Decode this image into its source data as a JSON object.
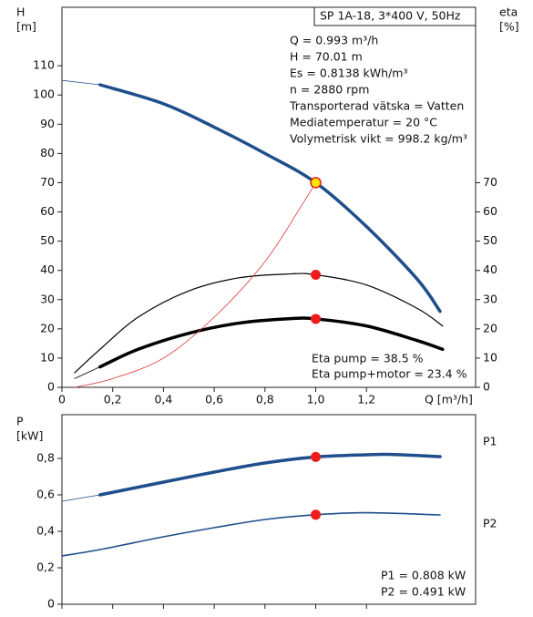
{
  "chart_data": [
    {
      "type": "line",
      "y_label": [
        "H",
        "[m]"
      ],
      "y2_label": [
        "eta",
        "[%]"
      ],
      "x_label": "Q [m³/h]",
      "box_title": "SP 1A-18, 3*400 V, 50Hz",
      "info": [
        "Q = 0.993 m³/h",
        "H = 70.01 m",
        "Es = 0.8138 kWh/m³",
        "n = 2880 rpm",
        "Transporterad vätska = Vatten",
        "Mediatemperatur = 20 °C",
        "Volymetrisk vikt = 998.2 kg/m³"
      ],
      "annotations": [
        "Eta pump = 38.5 %",
        "Eta pump+motor = 23.4 %"
      ],
      "xlim": [
        0,
        1.63
      ],
      "xticks": [
        0,
        {
          "value": 0.2,
          "label": "0,2"
        },
        {
          "value": 0.4,
          "label": "0,4"
        },
        {
          "value": 0.6,
          "label": "0,6"
        },
        {
          "value": 0.8,
          "label": "0,8"
        },
        {
          "value": 1.0,
          "label": "1,0"
        },
        {
          "value": 1.2,
          "label": "1,2"
        }
      ],
      "ylim": [
        0,
        130
      ],
      "yticks": [
        0,
        10,
        20,
        30,
        40,
        50,
        60,
        70,
        80,
        90,
        100,
        110
      ],
      "y2lim": [
        0,
        130
      ],
      "y2ticks": [
        0,
        10,
        20,
        30,
        40,
        50,
        60,
        70
      ],
      "series": [
        {
          "color": "#1f4e8c",
          "width": 0.8,
          "x": [
            0,
            0.15
          ],
          "values": [
            105,
            103.5
          ]
        },
        {
          "color": "#1f4e8c",
          "width": 3.5,
          "x": [
            0.15,
            0.4,
            0.6,
            0.8,
            1.0,
            1.2,
            1.4,
            1.49
          ],
          "values": [
            103.5,
            97,
            89,
            80,
            70,
            55,
            37,
            26
          ]
        },
        {
          "color": "#000000",
          "width": 1.2,
          "axis": "y2",
          "x": [
            0.05,
            0.15,
            0.3,
            0.5,
            0.7,
            0.9,
            1.0,
            1.2,
            1.4,
            1.5
          ],
          "values": [
            5,
            13,
            24,
            33,
            37.5,
            38.8,
            38.5,
            35,
            27,
            21
          ]
        },
        {
          "color": "#000000",
          "width": 0.8,
          "axis": "y2",
          "x": [
            0.05,
            0.15
          ],
          "values": [
            3,
            7
          ]
        },
        {
          "color": "#000000",
          "width": 3.5,
          "axis": "y2",
          "x": [
            0.15,
            0.3,
            0.5,
            0.7,
            0.9,
            1.0,
            1.2,
            1.4,
            1.5
          ],
          "values": [
            7,
            13,
            18.5,
            22,
            23.5,
            23.4,
            21,
            16,
            13
          ]
        },
        {
          "color": "#e03030",
          "width": 0.8,
          "x": [
            0.05,
            0.2,
            0.4,
            0.6,
            0.8,
            0.95,
            1.0
          ],
          "values": [
            0,
            3,
            10,
            24,
            43,
            63,
            70
          ]
        },
        {
          "color": "#ee1c1c",
          "marker": true,
          "axis": "y2",
          "x": [
            1.0
          ],
          "values": [
            38.5
          ]
        },
        {
          "color": "#ee1c1c",
          "marker": true,
          "axis": "y2",
          "x": [
            1.0
          ],
          "values": [
            23.4
          ]
        },
        {
          "color": "#ffe600",
          "edge": "#e02020",
          "marker": true,
          "x": [
            1.0
          ],
          "values": [
            70.01
          ]
        }
      ]
    },
    {
      "type": "line",
      "y_label": [
        "P",
        "[kW]"
      ],
      "annotations": [
        "P1 = 0.808 kW",
        "P2 = 0.491 kW"
      ],
      "xlim": [
        0,
        1.63
      ],
      "xticks": [
        0,
        0.2,
        0.4,
        0.6,
        0.8,
        1.0,
        1.2
      ],
      "ylim": [
        0,
        1.04
      ],
      "yticks": [
        0,
        {
          "value": 0.2,
          "label": "0,2"
        },
        {
          "value": 0.4,
          "label": "0,4"
        },
        {
          "value": 0.6,
          "label": "0,6"
        },
        {
          "value": 0.8,
          "label": "0,8"
        }
      ],
      "series": [
        {
          "color": "#1f4e8c",
          "width": 0.8,
          "x": [
            0,
            0.15
          ],
          "values": [
            0.565,
            0.6
          ]
        },
        {
          "name": "P1",
          "color": "#1f4e8c",
          "width": 3.5,
          "x": [
            0.15,
            0.4,
            0.6,
            0.8,
            1.0,
            1.2,
            1.3,
            1.49
          ],
          "values": [
            0.6,
            0.67,
            0.725,
            0.775,
            0.808,
            0.82,
            0.822,
            0.81
          ]
        },
        {
          "name": "P2",
          "color": "#1f4e8c",
          "width": 1.6,
          "x": [
            0,
            0.15,
            0.4,
            0.6,
            0.8,
            1.0,
            1.2,
            1.49
          ],
          "values": [
            0.265,
            0.3,
            0.37,
            0.42,
            0.465,
            0.491,
            0.502,
            0.49
          ]
        },
        {
          "color": "#ee1c1c",
          "marker": true,
          "x": [
            1.0
          ],
          "values": [
            0.808
          ]
        },
        {
          "color": "#ee1c1c",
          "marker": true,
          "x": [
            1.0
          ],
          "values": [
            0.491
          ]
        }
      ]
    }
  ]
}
